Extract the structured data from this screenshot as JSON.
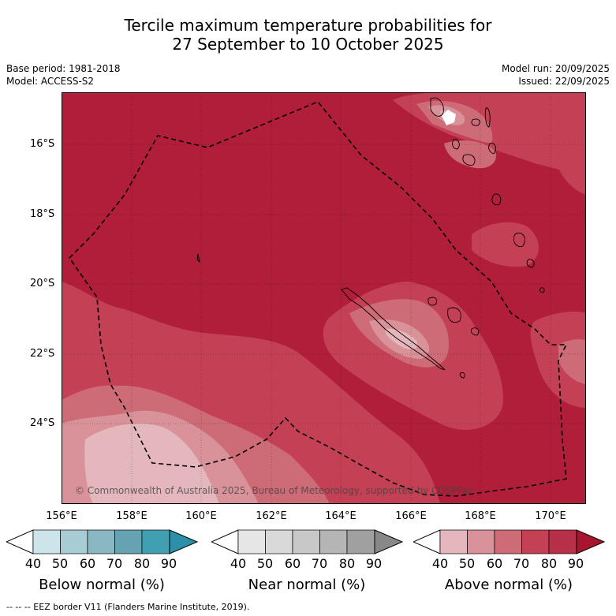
{
  "header": {
    "title_line1": "Tercile maximum temperature probabilities for",
    "title_line2": "27 September to 10 October 2025",
    "base_period": "Base period: 1981-2018",
    "model": "Model: ACCESS-S2",
    "model_run": "Model run: 20/09/2025",
    "issued": "Issued: 22/09/2025"
  },
  "map": {
    "lat_labels": [
      "16°S",
      "18°S",
      "20°S",
      "22°S",
      "24°S"
    ],
    "lon_labels": [
      "156°E",
      "158°E",
      "160°E",
      "162°E",
      "164°E",
      "166°E",
      "168°E",
      "170°E"
    ],
    "copyright": "© Commonwealth of Australia 2025, Bureau of Meteorology, supported by COSPPac",
    "colors": {
      "above_90": "#b01e3a",
      "above_80": "#c44055",
      "above_70": "#cd6b77",
      "above_60": "#d9919a",
      "above_50": "#e4b7bc",
      "white": "#ffffff"
    }
  },
  "colorbars": [
    {
      "label": "Below normal (%)",
      "ticks": [
        "40",
        "50",
        "60",
        "70",
        "80",
        "90"
      ],
      "colors": [
        "#ffffff",
        "#cde4ea",
        "#a8ccd3",
        "#89b7c2",
        "#66a3b2",
        "#40a0b2",
        "#2b90a8"
      ]
    },
    {
      "label": "Near normal (%)",
      "ticks": [
        "40",
        "50",
        "60",
        "70",
        "80",
        "90"
      ],
      "colors": [
        "#ffffff",
        "#e6e6e6",
        "#d9d9d9",
        "#c8c8c8",
        "#b5b5b5",
        "#a0a0a0",
        "#888888"
      ]
    },
    {
      "label": "Above normal (%)",
      "ticks": [
        "40",
        "50",
        "60",
        "70",
        "80",
        "90"
      ],
      "colors": [
        "#ffffff",
        "#e4b7bc",
        "#d9919a",
        "#cd6b77",
        "#c44055",
        "#b82f48",
        "#a8152f"
      ]
    }
  ],
  "footnote": "--  --  -- EEZ border V11 (Flanders Marine Institute, 2019)."
}
